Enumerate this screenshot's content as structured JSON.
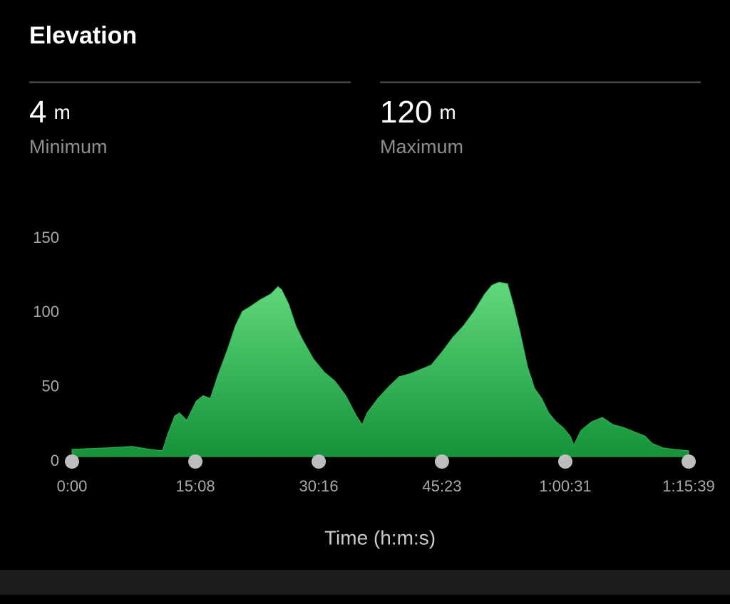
{
  "title": "Elevation",
  "stats": [
    {
      "value": 4,
      "unit": "m",
      "label": "Minimum"
    },
    {
      "value": 120,
      "unit": "m",
      "label": "Maximum"
    }
  ],
  "chart_data": {
    "type": "area",
    "x_label": "Time (h:m:s)",
    "color": "#2fb14f",
    "x": [
      0,
      257,
      441,
      572,
      666,
      703,
      756,
      792,
      845,
      913,
      965,
      1018,
      1070,
      1149,
      1202,
      1254,
      1307,
      1385,
      1464,
      1516,
      1543,
      1595,
      1648,
      1700,
      1779,
      1858,
      1936,
      2015,
      2094,
      2136,
      2172,
      2251,
      2330,
      2408,
      2487,
      2566,
      2644,
      2723,
      2802,
      2881,
      2959,
      3038,
      3091,
      3143,
      3206,
      3248,
      3300,
      3353,
      3405,
      3458,
      3510,
      3563,
      3615,
      3668,
      3694,
      3746,
      3825,
      3904,
      3982,
      4061,
      4140,
      4219,
      4271,
      4350,
      4429,
      4539
    ],
    "values": [
      5,
      6,
      7,
      5,
      4,
      15,
      28,
      30,
      25,
      38,
      42,
      40,
      55,
      75,
      90,
      100,
      103,
      108,
      112,
      117,
      115,
      105,
      90,
      80,
      67,
      58,
      52,
      42,
      28,
      22,
      30,
      40,
      48,
      55,
      57,
      60,
      63,
      72,
      82,
      90,
      100,
      112,
      118,
      120,
      119,
      105,
      85,
      62,
      47,
      40,
      30,
      24,
      20,
      14,
      8,
      18,
      24,
      27,
      22,
      20,
      17,
      14,
      9,
      6,
      5,
      4
    ],
    "xlim": [
      0,
      4539
    ],
    "xticks": [
      {
        "value": 0,
        "label": "0:00"
      },
      {
        "value": 908,
        "label": "15:08"
      },
      {
        "value": 1816,
        "label": "30:16"
      },
      {
        "value": 2723,
        "label": "45:23"
      },
      {
        "value": 3631,
        "label": "1:00:31"
      },
      {
        "value": 4539,
        "label": "1:15:39"
      }
    ],
    "ylim": [
      0,
      150
    ],
    "yticks": [
      0,
      50,
      100,
      150
    ]
  }
}
